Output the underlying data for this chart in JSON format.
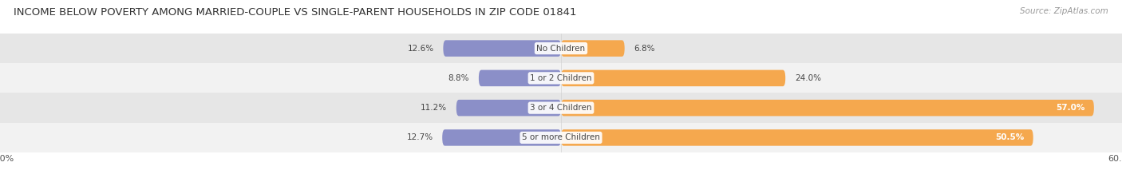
{
  "title": "INCOME BELOW POVERTY AMONG MARRIED-COUPLE VS SINGLE-PARENT HOUSEHOLDS IN ZIP CODE 01841",
  "source": "Source: ZipAtlas.com",
  "categories": [
    "No Children",
    "1 or 2 Children",
    "3 or 4 Children",
    "5 or more Children"
  ],
  "married_values": [
    12.6,
    8.8,
    11.2,
    12.7
  ],
  "single_values": [
    6.8,
    24.0,
    57.0,
    50.5
  ],
  "married_color": "#8b8fc8",
  "single_color": "#f5a84e",
  "row_bg_even": "#f2f2f2",
  "row_bg_odd": "#e6e6e6",
  "axis_max": 60.0,
  "title_fontsize": 9.5,
  "tick_fontsize": 8,
  "source_fontsize": 7.5,
  "legend_fontsize": 8,
  "category_label_fontsize": 7.5,
  "value_label_fontsize": 7.5
}
